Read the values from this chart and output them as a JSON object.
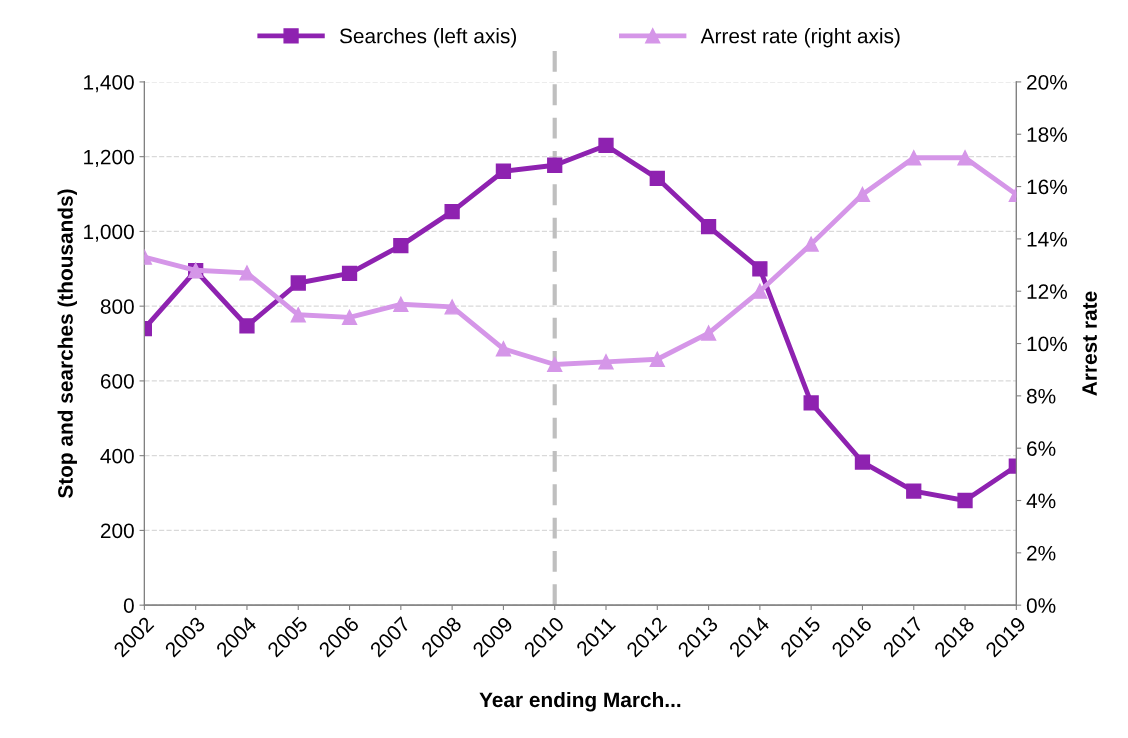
{
  "chart_data": {
    "type": "line",
    "xlabel": "Year ending March...",
    "ylabel": "Stop and searches (thousands)",
    "y2label": "Arrest rate",
    "categories": [
      "2002",
      "2003",
      "2004",
      "2005",
      "2006",
      "2007",
      "2008",
      "2009",
      "2010",
      "2011",
      "2012",
      "2013",
      "2014",
      "2015",
      "2016",
      "2017",
      "2018",
      "2019"
    ],
    "series": [
      {
        "name": "Searches (left axis)",
        "color": "#8e22b0",
        "marker": "square",
        "values": [
          740,
          895,
          747,
          862,
          888,
          962,
          1053,
          1161,
          1177,
          1230,
          1142,
          1013,
          900,
          541,
          383,
          305,
          280,
          372
        ]
      },
      {
        "name": "Arrest rate (right axis)",
        "color": "#d596e8",
        "marker": "triangle",
        "axis": "y2",
        "values": [
          13.3,
          12.8,
          12.7,
          11.1,
          11.0,
          11.5,
          11.4,
          9.8,
          9.2,
          9.3,
          9.4,
          10.4,
          12.0,
          13.8,
          15.7,
          17.1,
          17.1,
          15.7
        ]
      }
    ],
    "ylim": [
      0,
      1400
    ],
    "yticks": [
      0,
      {
        "value": 200,
        "label": "200"
      },
      {
        "value": 400,
        "label": "400"
      },
      {
        "value": 600,
        "label": "600"
      },
      {
        "value": 800,
        "label": "800"
      },
      {
        "value": 1000,
        "label": "1,000"
      },
      {
        "value": 1200,
        "label": "1,200"
      },
      {
        "value": 1400,
        "label": "1,400"
      }
    ],
    "y2lim": [
      0,
      20
    ],
    "y2ticks": [
      {
        "value": 0,
        "label": "0%"
      },
      {
        "value": 2,
        "label": "2%"
      },
      {
        "value": 4,
        "label": "4%"
      },
      {
        "value": 6,
        "label": "6%"
      },
      {
        "value": 8,
        "label": "8%"
      },
      {
        "value": 10,
        "label": "10%"
      },
      {
        "value": 12,
        "label": "12%"
      },
      {
        "value": 14,
        "label": "14%"
      },
      {
        "value": 16,
        "label": "16%"
      },
      {
        "value": 18,
        "label": "18%"
      },
      {
        "value": 20,
        "label": "20%"
      }
    ],
    "ref_lines": [
      {
        "axis": "x",
        "value": "2010",
        "color": "#bfbfbf",
        "line_style": "dashed"
      }
    ],
    "grid": "y",
    "legend": "top",
    "line_style": "solid"
  }
}
